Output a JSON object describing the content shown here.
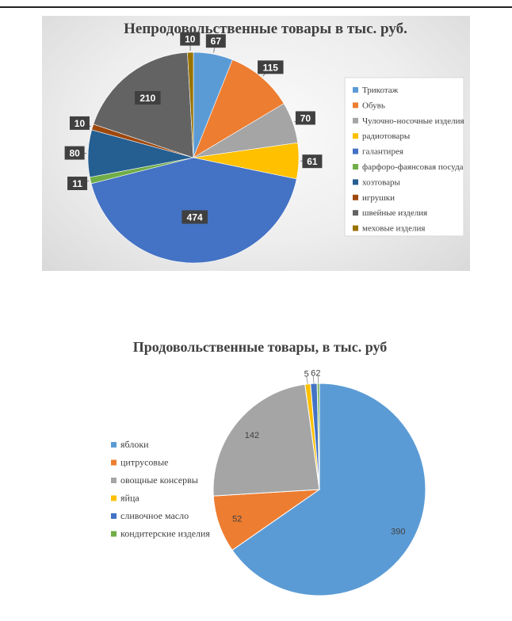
{
  "chart_data": [
    {
      "type": "pie",
      "title": "Непродовольственные товары в тыс. руб.",
      "legend_position": "right",
      "categories": [
        "Трикотаж",
        "Обувь",
        "Чулочно-носочные изделия",
        "радиотовары",
        "галантирея",
        "фарфоро-фаянсовая посуда",
        "хозтовары",
        "игрушки",
        "швейные изделия",
        "меховые изделия"
      ],
      "values": [
        67,
        115,
        70,
        61,
        474,
        11,
        80,
        10,
        210,
        10
      ],
      "colors": [
        "#5b9bd5",
        "#ed7d31",
        "#a5a5a5",
        "#ffc000",
        "#4472c4",
        "#70ad47",
        "#255e91",
        "#9e480e",
        "#636363",
        "#997300"
      ]
    },
    {
      "type": "pie",
      "title": "Продовольственные товары, в тыс. руб",
      "legend_position": "left",
      "categories": [
        "яблоки",
        "цитрусовые",
        "овощные консервы",
        "яйца",
        "сливочное масло",
        "кондитерские изделия"
      ],
      "values": [
        390,
        52,
        142,
        5,
        6,
        2
      ],
      "colors": [
        "#5b9bd5",
        "#ed7d31",
        "#a5a5a5",
        "#ffc000",
        "#4472c4",
        "#70ad47"
      ]
    }
  ]
}
